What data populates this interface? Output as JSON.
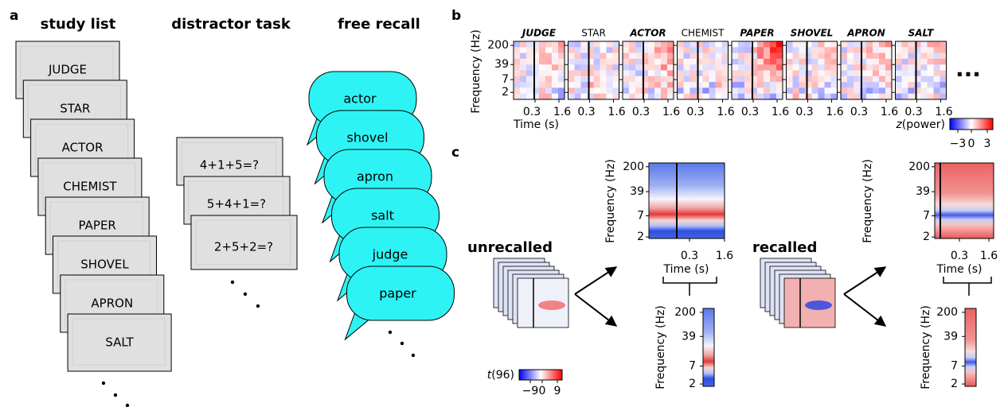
{
  "panel_a": {
    "label": "a",
    "study_title": "study list",
    "distractor_title": "distractor task",
    "recall_title": "free recall",
    "study_words": [
      "JUDGE",
      "STAR",
      "ACTOR",
      "CHEMIST",
      "PAPER",
      "SHOVEL",
      "APRON",
      "SALT"
    ],
    "problems": [
      "4+1+5=?",
      "5+4+1=?",
      "2+5+2=?"
    ],
    "recalled_words": [
      "actor",
      "shovel",
      "apron",
      "salt",
      "judge",
      "paper"
    ]
  },
  "panel_b": {
    "label": "b",
    "words": [
      {
        "text": "JUDGE",
        "recalled": true
      },
      {
        "text": "STAR",
        "recalled": false
      },
      {
        "text": "ACTOR",
        "recalled": true
      },
      {
        "text": "CHEMIST",
        "recalled": false
      },
      {
        "text": "PAPER",
        "recalled": true
      },
      {
        "text": "SHOVEL",
        "recalled": true
      },
      {
        "text": "APRON",
        "recalled": true
      },
      {
        "text": "SALT",
        "recalled": true
      }
    ],
    "y_label": "Frequency (Hz)",
    "y_ticks": [
      "200",
      "39",
      "7",
      "2"
    ],
    "x_label": "Time (s)",
    "x_ticks": [
      "0.3",
      "1.6"
    ],
    "more": "...",
    "colorbar": {
      "var": "z",
      "label": "(power)",
      "ticks": [
        "−3",
        "0",
        "3"
      ]
    }
  },
  "panel_c": {
    "label": "c",
    "conditions": [
      "unrecalled",
      "recalled"
    ],
    "y_label": "Frequency (Hz)",
    "y_ticks": [
      "200",
      "39",
      "7",
      "2"
    ],
    "x_label": "Time (s)",
    "x_ticks": [
      "0.3",
      "1.6"
    ],
    "colorbar": {
      "var": "t",
      "label": "(96)",
      "ticks": [
        "−9",
        "0",
        "9"
      ]
    }
  }
}
